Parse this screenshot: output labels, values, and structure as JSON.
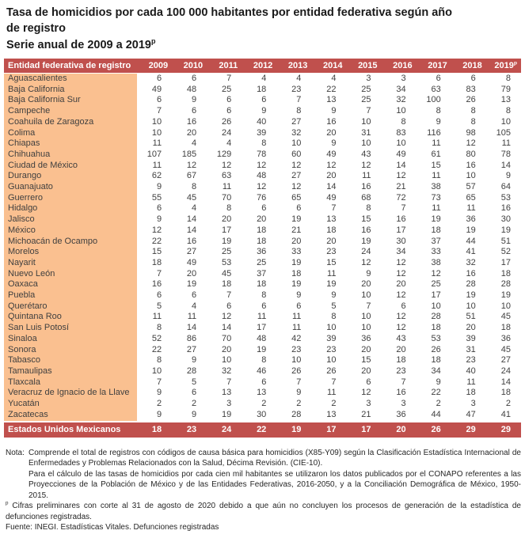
{
  "page": {
    "title_line1": "Tasa de homicidios por cada 100 000 habitantes por entidad federativa según año",
    "title_line2": "de registro",
    "subtitle": "Serie anual de 2009 a 2019",
    "subtitle_sup": "p"
  },
  "colors": {
    "header_bg": "#C0504D",
    "header_text": "#FFFFFF",
    "entity_col_bg": "#FAC090",
    "body_text": "#3F3F3F"
  },
  "chart_data": {
    "type": "table",
    "title": "Tasa de homicidios por cada 100 000 habitantes por entidad federativa según año de registro",
    "subtitle": "Serie anual de 2009 a 2019ᵖ",
    "entity_header": "Entidad federativa de registro",
    "years": [
      "2009",
      "2010",
      "2011",
      "2012",
      "2013",
      "2014",
      "2015",
      "2016",
      "2017",
      "2018",
      "2019"
    ],
    "last_year_sup": "p",
    "rows": [
      {
        "entity": "Aguascalientes",
        "values": [
          6,
          6,
          7,
          4,
          4,
          4,
          3,
          3,
          6,
          6,
          8
        ]
      },
      {
        "entity": "Baja California",
        "values": [
          49,
          48,
          25,
          18,
          23,
          22,
          25,
          34,
          63,
          83,
          79
        ]
      },
      {
        "entity": "Baja California Sur",
        "values": [
          6,
          9,
          6,
          6,
          7,
          13,
          25,
          32,
          100,
          26,
          13
        ]
      },
      {
        "entity": "Campeche",
        "values": [
          7,
          6,
          6,
          9,
          8,
          9,
          7,
          10,
          8,
          8,
          8
        ]
      },
      {
        "entity": "Coahuila de Zaragoza",
        "values": [
          10,
          16,
          26,
          40,
          27,
          16,
          10,
          8,
          9,
          8,
          10
        ]
      },
      {
        "entity": "Colima",
        "values": [
          10,
          20,
          24,
          39,
          32,
          20,
          31,
          83,
          116,
          98,
          105
        ]
      },
      {
        "entity": "Chiapas",
        "values": [
          11,
          4,
          4,
          8,
          10,
          9,
          10,
          10,
          11,
          12,
          11
        ]
      },
      {
        "entity": "Chihuahua",
        "values": [
          107,
          185,
          129,
          78,
          60,
          49,
          43,
          49,
          61,
          80,
          78
        ]
      },
      {
        "entity": "Ciudad de México",
        "values": [
          11,
          12,
          12,
          12,
          12,
          12,
          12,
          14,
          15,
          16,
          14
        ]
      },
      {
        "entity": "Durango",
        "values": [
          62,
          67,
          63,
          48,
          27,
          20,
          11,
          12,
          11,
          10,
          9
        ]
      },
      {
        "entity": "Guanajuato",
        "values": [
          9,
          8,
          11,
          12,
          12,
          14,
          16,
          21,
          38,
          57,
          64
        ]
      },
      {
        "entity": "Guerrero",
        "values": [
          55,
          45,
          70,
          76,
          65,
          49,
          68,
          72,
          73,
          65,
          53
        ]
      },
      {
        "entity": "Hidalgo",
        "values": [
          6,
          4,
          8,
          6,
          6,
          7,
          8,
          7,
          11,
          11,
          16
        ]
      },
      {
        "entity": "Jalisco",
        "values": [
          9,
          14,
          20,
          20,
          19,
          13,
          15,
          16,
          19,
          36,
          30
        ]
      },
      {
        "entity": "México",
        "values": [
          12,
          14,
          17,
          18,
          21,
          18,
          16,
          17,
          18,
          19,
          19
        ]
      },
      {
        "entity": "Michoacán de Ocampo",
        "values": [
          22,
          16,
          19,
          18,
          20,
          20,
          19,
          30,
          37,
          44,
          51
        ]
      },
      {
        "entity": "Morelos",
        "values": [
          15,
          27,
          25,
          36,
          33,
          23,
          24,
          34,
          33,
          41,
          52
        ]
      },
      {
        "entity": "Nayarit",
        "values": [
          18,
          49,
          53,
          25,
          19,
          15,
          12,
          12,
          38,
          32,
          17
        ]
      },
      {
        "entity": "Nuevo León",
        "values": [
          7,
          20,
          45,
          37,
          18,
          11,
          9,
          12,
          12,
          16,
          18
        ]
      },
      {
        "entity": "Oaxaca",
        "values": [
          16,
          19,
          18,
          18,
          19,
          19,
          20,
          20,
          25,
          28,
          28
        ]
      },
      {
        "entity": "Puebla",
        "values": [
          6,
          6,
          7,
          8,
          9,
          9,
          10,
          12,
          17,
          19,
          19
        ]
      },
      {
        "entity": "Querétaro",
        "values": [
          5,
          4,
          6,
          6,
          6,
          5,
          7,
          6,
          10,
          10,
          10
        ]
      },
      {
        "entity": "Quintana Roo",
        "values": [
          11,
          11,
          12,
          11,
          11,
          8,
          10,
          12,
          28,
          51,
          45
        ]
      },
      {
        "entity": "San Luis Potosí",
        "values": [
          8,
          14,
          14,
          17,
          11,
          10,
          10,
          12,
          18,
          20,
          18
        ]
      },
      {
        "entity": "Sinaloa",
        "values": [
          52,
          86,
          70,
          48,
          42,
          39,
          36,
          43,
          53,
          39,
          36
        ]
      },
      {
        "entity": "Sonora",
        "values": [
          22,
          27,
          20,
          19,
          23,
          23,
          20,
          20,
          26,
          31,
          45
        ]
      },
      {
        "entity": "Tabasco",
        "values": [
          8,
          9,
          10,
          8,
          10,
          10,
          15,
          18,
          18,
          23,
          27
        ]
      },
      {
        "entity": "Tamaulipas",
        "values": [
          10,
          28,
          32,
          46,
          26,
          26,
          20,
          23,
          34,
          40,
          24
        ]
      },
      {
        "entity": "Tlaxcala",
        "values": [
          7,
          5,
          7,
          6,
          7,
          7,
          6,
          7,
          9,
          11,
          14
        ]
      },
      {
        "entity": "Veracruz de Ignacio de la Llave",
        "values": [
          9,
          6,
          13,
          13,
          9,
          11,
          12,
          16,
          22,
          18,
          18
        ]
      },
      {
        "entity": "Yucatán",
        "values": [
          2,
          2,
          3,
          2,
          2,
          2,
          3,
          3,
          2,
          3,
          2
        ]
      },
      {
        "entity": "Zacatecas",
        "values": [
          9,
          9,
          19,
          30,
          28,
          13,
          21,
          36,
          44,
          47,
          41
        ]
      }
    ],
    "total_row": {
      "entity": "Estados Unidos Mexicanos",
      "values": [
        18,
        23,
        24,
        22,
        19,
        17,
        17,
        20,
        26,
        29,
        29
      ]
    }
  },
  "notes": {
    "nota_label": "Nota:",
    "paragraph1": "Comprende el total de registros con códigos de causa básica para homicidios (X85-Y09) según la Clasificación Estadística Internacional de Enfermedades y Problemas Relacionados con la Salud, Décima Revisión. (CIE-10).",
    "paragraph2": "Para el cálculo de las tasas de homicidios por cada cien mil habitantes se utilizaron los datos publicados por el CONAPO referentes a las Proyecciones de la Población de México y de las Entidades Federativas, 2016-2050, y a la Conciliación Demográfica de México, 1950-2015.",
    "preliminary_sup": "p",
    "preliminary_text": " Cifras preliminares con corte al 31 de agosto de 2020 debido a que aún no concluyen los procesos de generación de la estadística de defunciones registradas.",
    "source": "Fuente: INEGI. Estadísticas Vitales. Defunciones registradas"
  }
}
